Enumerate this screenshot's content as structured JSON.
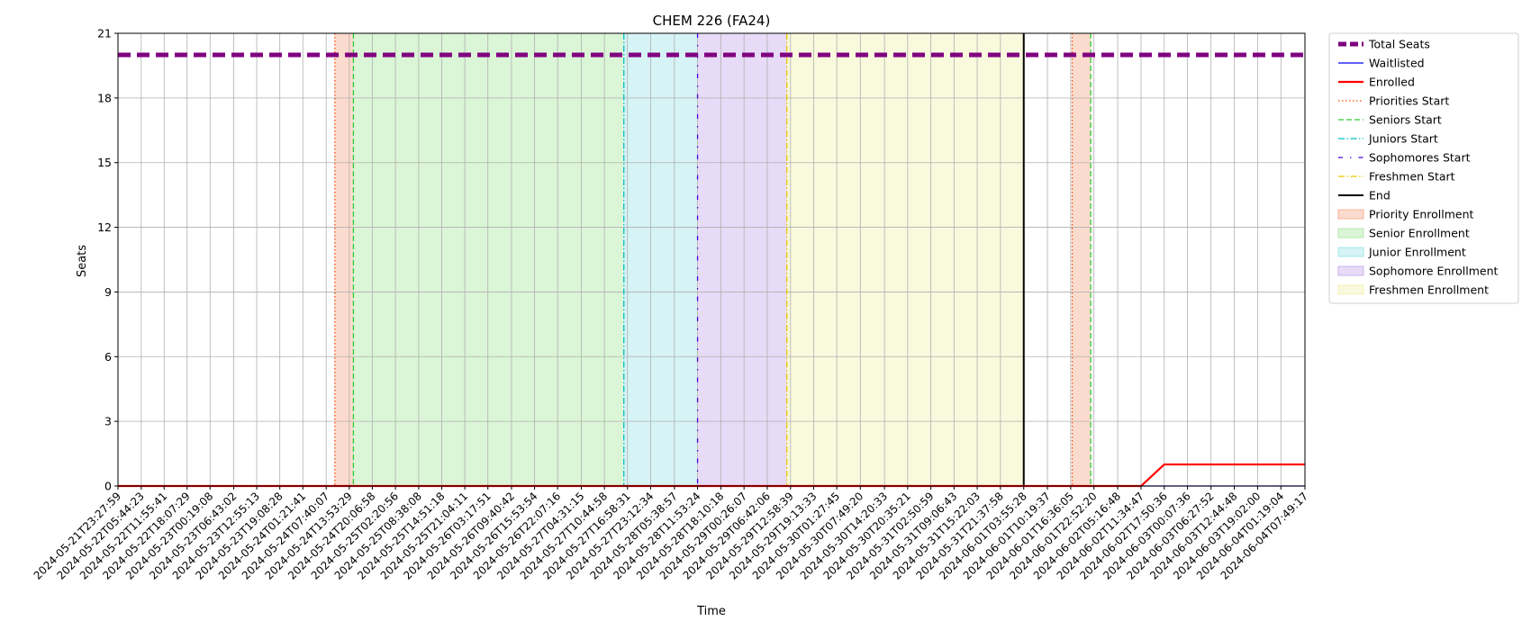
{
  "chart_data": {
    "type": "line",
    "title": "CHEM 226 (FA24)",
    "xlabel": "Time",
    "ylabel": "Seats",
    "ylim": [
      0,
      21
    ],
    "yticks": [
      0,
      3,
      6,
      9,
      12,
      15,
      18,
      21
    ],
    "grid": true,
    "legend_placement": "outside-right",
    "x": [
      "2024-05-21T23:27:59",
      "2024-05-22T05:44:23",
      "2024-05-22T11:55:41",
      "2024-05-22T18:07:29",
      "2024-05-23T00:19:08",
      "2024-05-23T06:43:02",
      "2024-05-23T12:55:13",
      "2024-05-23T19:08:28",
      "2024-05-24T01:21:41",
      "2024-05-24T07:40:07",
      "2024-05-24T13:53:29",
      "2024-05-24T20:06:58",
      "2024-05-25T02:20:56",
      "2024-05-25T08:38:08",
      "2024-05-25T14:51:18",
      "2024-05-25T21:04:11",
      "2024-05-26T03:17:51",
      "2024-05-26T09:40:42",
      "2024-05-26T15:53:54",
      "2024-05-26T22:07:16",
      "2024-05-27T04:31:15",
      "2024-05-27T10:44:58",
      "2024-05-27T16:58:31",
      "2024-05-27T23:12:34",
      "2024-05-28T05:38:57",
      "2024-05-28T11:53:24",
      "2024-05-28T18:10:18",
      "2024-05-29T00:26:07",
      "2024-05-29T06:42:06",
      "2024-05-29T12:58:39",
      "2024-05-29T19:13:33",
      "2024-05-30T01:27:45",
      "2024-05-30T07:49:20",
      "2024-05-30T14:20:33",
      "2024-05-30T20:35:21",
      "2024-05-31T02:50:59",
      "2024-05-31T09:06:43",
      "2024-05-31T15:22:03",
      "2024-05-31T21:37:58",
      "2024-06-01T03:55:28",
      "2024-06-01T10:19:37",
      "2024-06-01T16:36:05",
      "2024-06-01T22:52:20",
      "2024-06-02T05:16:48",
      "2024-06-02T11:34:47",
      "2024-06-02T17:50:36",
      "2024-06-03T00:07:36",
      "2024-06-03T06:27:52",
      "2024-06-03T12:44:48",
      "2024-06-03T19:02:00",
      "2024-06-04T01:19:04",
      "2024-06-04T07:49:17"
    ],
    "series": [
      {
        "name": "Total Seats",
        "color": "#800080",
        "style": "dashed-thick",
        "values": [
          20,
          20,
          20,
          20,
          20,
          20,
          20,
          20,
          20,
          20,
          20,
          20,
          20,
          20,
          20,
          20,
          20,
          20,
          20,
          20,
          20,
          20,
          20,
          20,
          20,
          20,
          20,
          20,
          20,
          20,
          20,
          20,
          20,
          20,
          20,
          20,
          20,
          20,
          20,
          20,
          20,
          20,
          20,
          20,
          20,
          20,
          20,
          20,
          20,
          20,
          20,
          20
        ]
      },
      {
        "name": "Waitlisted",
        "color": "#0000ff",
        "style": "solid",
        "values": [
          0,
          0,
          0,
          0,
          0,
          0,
          0,
          0,
          0,
          0,
          0,
          0,
          0,
          0,
          0,
          0,
          0,
          0,
          0,
          0,
          0,
          0,
          0,
          0,
          0,
          0,
          0,
          0,
          0,
          0,
          0,
          0,
          0,
          0,
          0,
          0,
          0,
          0,
          0,
          0,
          0,
          0,
          0,
          0,
          0,
          0,
          0,
          0,
          0,
          0,
          0,
          0
        ]
      },
      {
        "name": "Enrolled",
        "color": "#ff0000",
        "style": "solid",
        "values": [
          0,
          0,
          0,
          0,
          0,
          0,
          0,
          0,
          0,
          0,
          0,
          0,
          0,
          0,
          0,
          0,
          0,
          0,
          0,
          0,
          0,
          0,
          0,
          0,
          0,
          0,
          0,
          0,
          0,
          0,
          0,
          0,
          0,
          0,
          0,
          0,
          0,
          0,
          0,
          0,
          0,
          0,
          0,
          0,
          0,
          1,
          1,
          1,
          1,
          1,
          1,
          1
        ]
      }
    ],
    "markers": [
      {
        "name": "Priorities Start",
        "color": "#ff4500",
        "style": "dotted",
        "at": "2024-05-24T10:00:00"
      },
      {
        "name": "Seniors Start",
        "color": "#32cd32",
        "style": "dashed",
        "at": "2024-05-24T15:00:00"
      },
      {
        "name": "Juniors Start",
        "color": "#00bfbf",
        "style": "dashdot",
        "at": "2024-05-27T16:00:00"
      },
      {
        "name": "Sophomores Start",
        "color": "#4b00d9",
        "style": "loose-dashdot",
        "at": "2024-05-28T11:53:24"
      },
      {
        "name": "Freshmen Start",
        "color": "#e6c700",
        "style": "dashdot",
        "at": "2024-05-29T12:00:00"
      },
      {
        "name": "End",
        "color": "#000000",
        "style": "solid",
        "at": "2024-06-01T03:55:28"
      },
      {
        "name": "Priorities Start",
        "color": "#ff4500",
        "style": "dotted",
        "at": "2024-06-01T17:00:00",
        "legend": false
      },
      {
        "name": "Seniors Start",
        "color": "#32cd32",
        "style": "dashed",
        "at": "2024-06-01T22:00:00",
        "legend": false
      }
    ],
    "regions": [
      {
        "name": "Priority Enrollment",
        "color": "#f4a582",
        "from": "2024-05-24T10:00:00",
        "to": "2024-05-24T15:00:00"
      },
      {
        "name": "Senior Enrollment",
        "color": "#a6e59a",
        "from": "2024-05-24T15:00:00",
        "to": "2024-05-27T16:00:00"
      },
      {
        "name": "Junior Enrollment",
        "color": "#99e2e6",
        "from": "2024-05-27T16:00:00",
        "to": "2024-05-28T11:53:24"
      },
      {
        "name": "Sophomore Enrollment",
        "color": "#c3a6ec",
        "from": "2024-05-28T11:53:24",
        "to": "2024-05-29T12:00:00"
      },
      {
        "name": "Freshmen Enrollment",
        "color": "#eff0aa",
        "from": "2024-05-29T12:00:00",
        "to": "2024-06-01T03:55:28"
      },
      {
        "name": "Priority Enrollment",
        "color": "#f4a582",
        "from": "2024-06-01T17:00:00",
        "to": "2024-06-01T22:00:00",
        "legend": false
      }
    ]
  }
}
